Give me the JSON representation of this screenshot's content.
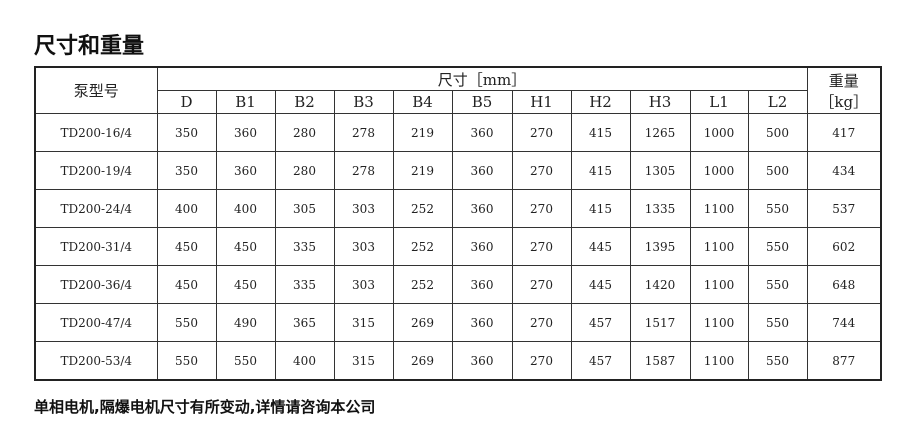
{
  "title": "尺寸和重量",
  "table": {
    "model_header": "泵型号",
    "dimension_header": "尺寸［mm］",
    "weight_header_line1": "重量",
    "weight_header_line2": "［kg］",
    "columns": [
      "D",
      "B1",
      "B2",
      "B3",
      "B4",
      "B5",
      "H1",
      "H2",
      "H3",
      "L1",
      "L2"
    ],
    "rows": [
      {
        "model": "TD200-16/4",
        "values": [
          "350",
          "360",
          "280",
          "278",
          "219",
          "360",
          "270",
          "415",
          "1265",
          "1000",
          "500"
        ],
        "weight": "417"
      },
      {
        "model": "TD200-19/4",
        "values": [
          "350",
          "360",
          "280",
          "278",
          "219",
          "360",
          "270",
          "415",
          "1305",
          "1000",
          "500"
        ],
        "weight": "434"
      },
      {
        "model": "TD200-24/4",
        "values": [
          "400",
          "400",
          "305",
          "303",
          "252",
          "360",
          "270",
          "415",
          "1335",
          "1100",
          "550"
        ],
        "weight": "537"
      },
      {
        "model": "TD200-31/4",
        "values": [
          "450",
          "450",
          "335",
          "303",
          "252",
          "360",
          "270",
          "445",
          "1395",
          "1100",
          "550"
        ],
        "weight": "602"
      },
      {
        "model": "TD200-36/4",
        "values": [
          "450",
          "450",
          "335",
          "303",
          "252",
          "360",
          "270",
          "445",
          "1420",
          "1100",
          "550"
        ],
        "weight": "648"
      },
      {
        "model": "TD200-47/4",
        "values": [
          "550",
          "490",
          "365",
          "315",
          "269",
          "360",
          "270",
          "457",
          "1517",
          "1100",
          "550"
        ],
        "weight": "744"
      },
      {
        "model": "TD200-53/4",
        "values": [
          "550",
          "550",
          "400",
          "315",
          "269",
          "360",
          "270",
          "457",
          "1587",
          "1100",
          "550"
        ],
        "weight": "877"
      }
    ]
  },
  "footer": "单相电机,隔爆电机尺寸有所变动,详情请咨询本公司"
}
